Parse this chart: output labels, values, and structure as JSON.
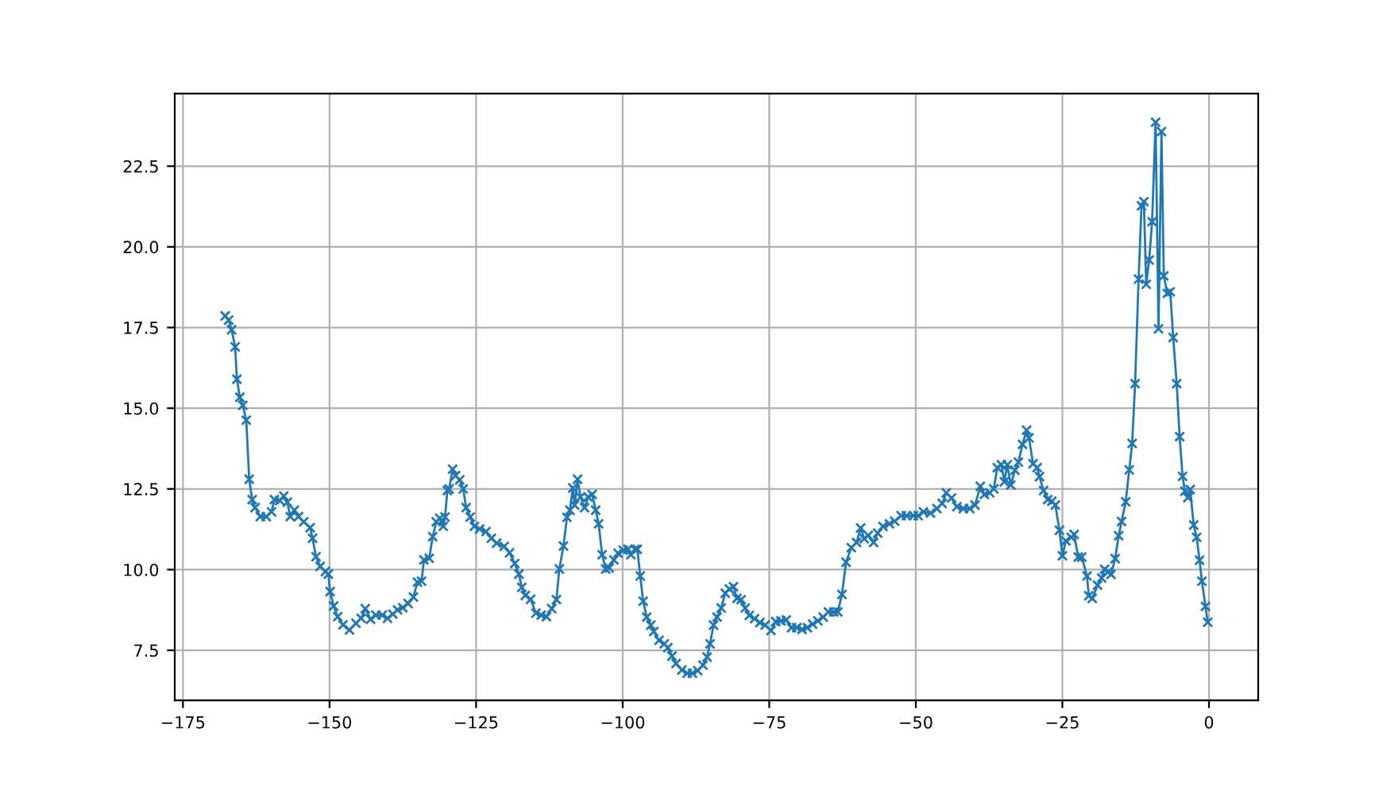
{
  "chart_data": {
    "type": "line",
    "marker": "cross",
    "grid": true,
    "xlim": [
      -176.4,
      8.4
    ],
    "ylim": [
      5.95,
      24.75
    ],
    "xticks": [
      -175,
      -150,
      -125,
      -100,
      -75,
      -50,
      -25,
      0
    ],
    "yticks": [
      7.5,
      {
        "value": 10,
        "label": "10.0"
      },
      12.5,
      {
        "value": 15,
        "label": "15.0"
      },
      17.5,
      {
        "value": 20,
        "label": "20.0"
      },
      22.5
    ],
    "series": [
      {
        "color": "#1f77b4",
        "x": [
          -167.8,
          -167.2,
          -166.7,
          -166.1,
          -165.8,
          -165.3,
          -164.8,
          -164.2,
          -163.7,
          -163.2,
          -162.7,
          -161.8,
          -160.8,
          -159.9,
          -159.4,
          -158.5,
          -157.8,
          -157.2,
          -156.7,
          -156.0,
          -155.3,
          -154.4,
          -153.3,
          -152.9,
          -152.3,
          -151.6,
          -150.7,
          -150.2,
          -149.9,
          -149.3,
          -148.6,
          -147.7,
          -146.6,
          -145.5,
          -144.6,
          -143.9,
          -143.0,
          -142.1,
          -141.0,
          -140.1,
          -139.2,
          -138.4,
          -137.5,
          -136.6,
          -135.7,
          -135.0,
          -134.3,
          -133.9,
          -133.0,
          -132.4,
          -131.8,
          -131.2,
          -130.6,
          -130.3,
          -129.9,
          -129.6,
          -129.0,
          -128.5,
          -127.8,
          -127.2,
          -126.7,
          -126.0,
          -125.3,
          -124.4,
          -123.3,
          -122.4,
          -121.5,
          -120.2,
          -119.3,
          -118.4,
          -117.7,
          -117.2,
          -116.6,
          -115.7,
          -114.8,
          -113.9,
          -113.0,
          -112.1,
          -111.3,
          -110.8,
          -110.1,
          -109.5,
          -109.0,
          -108.5,
          -108.2,
          -107.7,
          -107.2,
          -106.5,
          -105.9,
          -105.2,
          -104.6,
          -104.1,
          -103.5,
          -102.9,
          -102.3,
          -101.5,
          -100.8,
          -99.9,
          -99.1,
          -98.6,
          -97.9,
          -97.5,
          -97.0,
          -96.5,
          -95.9,
          -95.2,
          -94.7,
          -93.8,
          -92.9,
          -92.3,
          -91.6,
          -90.9,
          -89.9,
          -89.0,
          -88.1,
          -87.2,
          -86.3,
          -85.6,
          -85.1,
          -84.5,
          -83.9,
          -83.2,
          -82.5,
          -81.8,
          -81.1,
          -80.5,
          -79.8,
          -79.1,
          -78.4,
          -77.5,
          -76.6,
          -75.7,
          -74.7,
          -73.9,
          -73.0,
          -72.1,
          -71.2,
          -70.3,
          -69.4,
          -68.5,
          -67.6,
          -66.7,
          -65.8,
          -64.9,
          -64.0,
          -63.3,
          -62.6,
          -61.9,
          -61.0,
          -60.1,
          -59.4,
          -58.8,
          -58.1,
          -57.2,
          -56.5,
          -55.6,
          -54.5,
          -53.6,
          -52.5,
          -51.6,
          -50.4,
          -49.6,
          -48.7,
          -47.5,
          -46.4,
          -45.5,
          -44.8,
          -43.9,
          -43.0,
          -41.9,
          -40.8,
          -39.9,
          -39.0,
          -38.3,
          -37.4,
          -36.7,
          -36.1,
          -35.4,
          -34.9,
          -34.4,
          -33.8,
          -33.1,
          -32.5,
          -31.8,
          -31.1,
          -30.7,
          -30.0,
          -29.3,
          -28.9,
          -28.2,
          -27.5,
          -26.8,
          -26.2,
          -25.5,
          -25.0,
          -24.4,
          -23.5,
          -23.0,
          -22.3,
          -21.7,
          -20.8,
          -20.5,
          -19.9,
          -19.0,
          -18.3,
          -17.8,
          -17.2,
          -16.7,
          -16.0,
          -15.4,
          -14.9,
          -14.2,
          -13.6,
          -13.1,
          -12.6,
          -12.0,
          -11.5,
          -11.1,
          -10.7,
          -10.2,
          -9.7,
          -9.1,
          -8.6,
          -8.1,
          -7.7,
          -7.1,
          -6.6,
          -6.1,
          -5.5,
          -5.0,
          -4.5,
          -4.1,
          -3.6,
          -3.2,
          -2.6,
          -2.1,
          -1.6,
          -1.2,
          -0.6,
          -0.2
        ],
        "values": [
          17.86,
          17.73,
          17.43,
          16.9,
          15.9,
          15.34,
          15.09,
          14.63,
          12.8,
          12.17,
          11.92,
          11.64,
          11.64,
          11.79,
          12.17,
          12.14,
          12.28,
          12.09,
          11.64,
          11.84,
          11.64,
          11.48,
          11.3,
          10.97,
          10.4,
          10.1,
          9.94,
          9.86,
          9.32,
          8.87,
          8.54,
          8.29,
          8.13,
          8.34,
          8.49,
          8.79,
          8.46,
          8.59,
          8.59,
          8.49,
          8.62,
          8.75,
          8.82,
          8.95,
          9.15,
          9.61,
          9.64,
          10.3,
          10.35,
          11.02,
          11.48,
          11.59,
          11.34,
          11.63,
          12.45,
          12.5,
          13.11,
          12.91,
          12.78,
          12.5,
          11.92,
          11.63,
          11.34,
          11.26,
          11.18,
          10.97,
          10.82,
          10.72,
          10.52,
          10.19,
          9.86,
          9.45,
          9.2,
          9.08,
          8.65,
          8.59,
          8.54,
          8.79,
          9.07,
          10.02,
          10.73,
          11.62,
          11.84,
          12.53,
          12.0,
          12.8,
          12.25,
          11.92,
          12.25,
          12.33,
          11.84,
          11.42,
          10.46,
          10.02,
          10.05,
          10.3,
          10.51,
          10.6,
          10.63,
          10.46,
          10.63,
          10.63,
          9.8,
          9.02,
          8.53,
          8.28,
          8.08,
          7.81,
          7.7,
          7.58,
          7.32,
          7.09,
          6.89,
          6.79,
          6.79,
          6.87,
          7.04,
          7.29,
          7.7,
          8.28,
          8.53,
          8.81,
          9.27,
          9.4,
          9.47,
          9.11,
          9.07,
          8.81,
          8.58,
          8.48,
          8.36,
          8.28,
          8.11,
          8.39,
          8.41,
          8.44,
          8.2,
          8.2,
          8.15,
          8.2,
          8.31,
          8.41,
          8.53,
          8.69,
          8.69,
          8.69,
          9.23,
          10.23,
          10.68,
          10.84,
          11.29,
          10.96,
          11.06,
          10.84,
          11.13,
          11.34,
          11.42,
          11.5,
          11.67,
          11.67,
          11.67,
          11.67,
          11.79,
          11.75,
          11.89,
          12.05,
          12.38,
          12.22,
          11.95,
          11.89,
          11.89,
          12.0,
          12.58,
          12.33,
          12.38,
          12.5,
          13.16,
          13.25,
          12.72,
          13.25,
          12.62,
          13.08,
          13.33,
          13.88,
          14.32,
          14.08,
          13.28,
          13.16,
          12.88,
          12.45,
          12.17,
          12.12,
          12.0,
          11.22,
          10.43,
          10.89,
          11.0,
          11.09,
          10.39,
          10.39,
          9.8,
          9.19,
          9.11,
          9.52,
          9.74,
          10.01,
          9.93,
          9.85,
          10.34,
          11.05,
          11.49,
          12.1,
          13.09,
          13.91,
          15.76,
          19.0,
          21.27,
          21.4,
          18.84,
          19.59,
          20.78,
          23.86,
          17.46,
          23.57,
          19.1,
          18.56,
          18.61,
          17.19,
          15.76,
          14.12,
          12.89,
          12.43,
          12.23,
          12.48,
          11.38,
          11.0,
          10.29,
          9.64,
          8.86,
          8.37
        ]
      }
    ]
  }
}
